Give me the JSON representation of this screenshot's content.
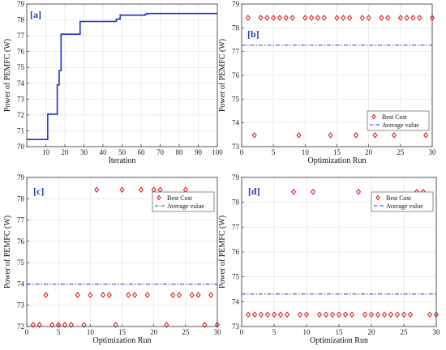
{
  "chart_data": [
    {
      "type": "line",
      "panel_tag": "[a]",
      "xlabel": "Iteration",
      "ylabel": "Power of PEMFC (W)",
      "xlim": [
        0,
        100
      ],
      "ylim": [
        70,
        79
      ],
      "xticks": [
        10,
        20,
        30,
        40,
        50,
        60,
        70,
        80,
        90,
        100
      ],
      "yticks": [
        70,
        71,
        72,
        73,
        74,
        75,
        76,
        77,
        78,
        79
      ],
      "grid": true,
      "series": [
        {
          "color": "#1f2fd0",
          "x": [
            0,
            11,
            11,
            16,
            16,
            17,
            17,
            18,
            18,
            19,
            19,
            28,
            28,
            47,
            47,
            49,
            49,
            62,
            62,
            63,
            63,
            100
          ],
          "y": [
            70.45,
            70.45,
            72.05,
            72.05,
            73.9,
            73.9,
            74.8,
            74.8,
            77.1,
            77.1,
            77.1,
            77.1,
            77.9,
            77.9,
            78.05,
            78.05,
            78.3,
            78.3,
            78.35,
            78.35,
            78.4,
            78.4
          ]
        }
      ]
    },
    {
      "type": "scatter",
      "panel_tag": "[b]",
      "xlabel": "Optimization Run",
      "ylabel": "Power of PEMFC (W)",
      "xlim": [
        0,
        30
      ],
      "ylim": [
        73,
        79
      ],
      "xticks": [
        0,
        5,
        10,
        15,
        20,
        25,
        30
      ],
      "yticks": [
        73,
        74,
        75,
        76,
        77,
        78,
        79
      ],
      "grid": true,
      "legend": {
        "position": "bottom-right",
        "entries": [
          "Best Cost",
          "Average value"
        ]
      },
      "series": [
        {
          "name": "Best Cost",
          "marker": "diamond",
          "color": "#e01010",
          "x": [
            1,
            2,
            3,
            4,
            5,
            6,
            7,
            8,
            9,
            10,
            11,
            12,
            13,
            14,
            15,
            16,
            17,
            18,
            19,
            20,
            21,
            22,
            23,
            24,
            25,
            26,
            27,
            28,
            29,
            30
          ],
          "y": [
            78.42,
            73.48,
            78.42,
            78.42,
            78.42,
            78.42,
            78.42,
            78.42,
            73.48,
            78.42,
            78.42,
            78.42,
            78.42,
            73.48,
            78.42,
            78.42,
            78.42,
            73.48,
            78.42,
            78.42,
            73.48,
            78.42,
            78.42,
            73.48,
            78.42,
            78.42,
            78.42,
            78.42,
            73.48,
            78.42
          ]
        },
        {
          "name": "Average value",
          "style": "dash-dot",
          "color": "#2b3fd6",
          "x": [
            0,
            30
          ],
          "y": [
            77.27,
            77.27
          ]
        }
      ]
    },
    {
      "type": "scatter",
      "panel_tag": "[c]",
      "xlabel": "Optimization Run",
      "ylabel": "Power of PEMFC (W)",
      "xlim": [
        0,
        30
      ],
      "ylim": [
        72,
        79
      ],
      "xticks": [
        0,
        5,
        10,
        15,
        20,
        25,
        30
      ],
      "yticks": [
        72,
        73,
        74,
        75,
        76,
        77,
        78,
        79
      ],
      "grid": true,
      "legend": {
        "position": "top-right",
        "entries": [
          "Best Cost",
          "Average value"
        ]
      },
      "series": [
        {
          "name": "Best Cost",
          "marker": "diamond",
          "color": "#e01010",
          "x": [
            1,
            2,
            3,
            4,
            5,
            6,
            7,
            8,
            9,
            10,
            11,
            12,
            13,
            14,
            15,
            16,
            17,
            18,
            19,
            20,
            21,
            22,
            23,
            24,
            25,
            26,
            27,
            28,
            29,
            30
          ],
          "y": [
            72.08,
            72.08,
            73.48,
            72.08,
            72.08,
            72.08,
            72.08,
            73.48,
            72.08,
            73.48,
            78.42,
            73.48,
            73.48,
            72.08,
            78.42,
            73.48,
            73.48,
            78.42,
            73.48,
            78.42,
            78.42,
            72.08,
            73.48,
            73.48,
            78.42,
            73.48,
            73.48,
            72.08,
            73.48,
            72.08
          ]
        },
        {
          "name": "Average value",
          "style": "dash-dot",
          "color": "#2b3fd6",
          "x": [
            0,
            30
          ],
          "y": [
            73.98,
            73.98
          ]
        }
      ]
    },
    {
      "type": "scatter",
      "panel_tag": "[d]",
      "xlabel": "Optimization Run",
      "ylabel": "Power of PEMFC (W)",
      "xlim": [
        0,
        30
      ],
      "ylim": [
        73,
        79
      ],
      "xticks": [
        0,
        5,
        10,
        15,
        20,
        25,
        30
      ],
      "yticks": [
        73,
        74,
        75,
        76,
        77,
        78,
        79
      ],
      "grid": true,
      "legend": {
        "position": "top-right",
        "entries": [
          "Best Cost",
          "Average value"
        ]
      },
      "series": [
        {
          "name": "Best Cost",
          "marker": "diamond",
          "color": "#e01010",
          "x": [
            1,
            2,
            3,
            4,
            5,
            6,
            7,
            8,
            9,
            10,
            11,
            12,
            13,
            14,
            15,
            16,
            17,
            18,
            19,
            20,
            21,
            22,
            23,
            24,
            25,
            26,
            27,
            28,
            29,
            30
          ],
          "y": [
            73.48,
            73.48,
            73.48,
            73.48,
            73.48,
            73.48,
            73.48,
            78.42,
            73.48,
            73.48,
            78.42,
            73.48,
            73.48,
            73.48,
            73.48,
            73.48,
            73.48,
            78.42,
            73.48,
            73.48,
            73.48,
            73.48,
            73.48,
            73.48,
            73.48,
            73.48,
            78.42,
            78.42,
            73.48,
            73.48
          ]
        },
        {
          "name": "Average value",
          "style": "dash-dot",
          "color": "#2b3fd6",
          "x": [
            0,
            30
          ],
          "y": [
            74.31,
            74.31
          ]
        }
      ]
    }
  ]
}
